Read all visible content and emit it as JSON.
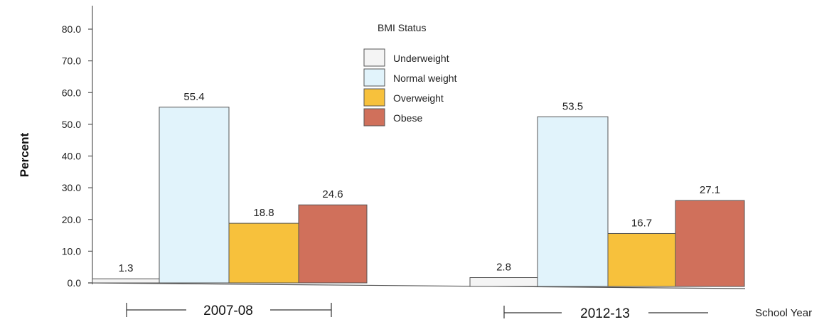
{
  "chart_data": {
    "type": "bar",
    "categories": [
      "2007-08",
      "2012-13"
    ],
    "series": [
      {
        "name": "Underweight",
        "values": [
          1.3,
          2.8
        ],
        "color": "#f4f4f4"
      },
      {
        "name": "Normal weight",
        "values": [
          55.4,
          53.5
        ],
        "color": "#e1f3fb"
      },
      {
        "name": "Overweight",
        "values": [
          18.8,
          16.7
        ],
        "color": "#f7c13c"
      },
      {
        "name": "Obese",
        "values": [
          24.6,
          27.1
        ],
        "color": "#d0705b"
      }
    ],
    "data_labels": [
      [
        "1.3",
        "2.8"
      ],
      [
        "55.4",
        "53.5"
      ],
      [
        "18.8",
        "16.7"
      ],
      [
        "24.6",
        "27.1"
      ]
    ],
    "yticks": [
      "0.0",
      "10.0",
      "20.0",
      "30.0",
      "40.0",
      "50.0",
      "60.0",
      "70.0",
      "80.0"
    ],
    "ylim": [
      0,
      85
    ],
    "ylabel": "Percent",
    "xlabel": "School Year",
    "legend_title": "BMI Status",
    "legend_position": "top-center",
    "grid": false
  }
}
